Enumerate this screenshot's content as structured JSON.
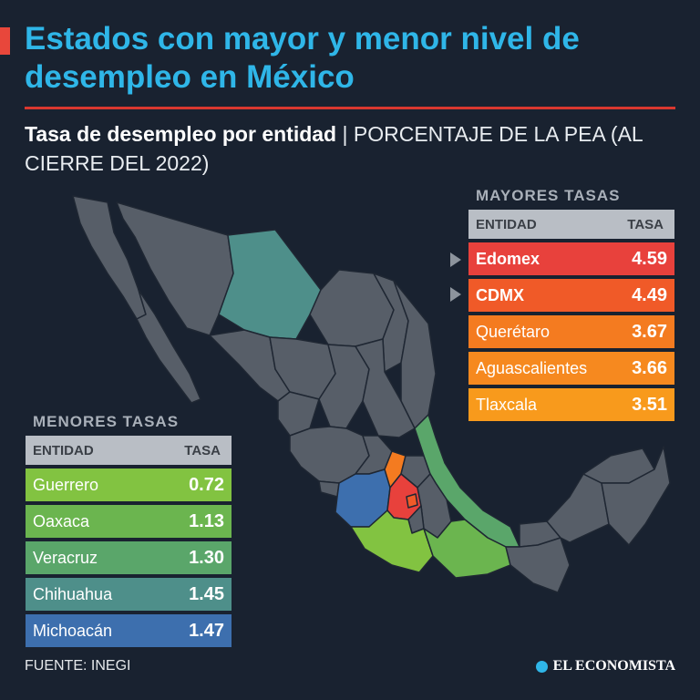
{
  "title": "Estados con mayor y menor nivel de desempleo en México",
  "subtitle_bold": "Tasa de desempleo por entidad",
  "subtitle_light": " | PORCENTAJE DE LA PEA (AL CIERRE DEL 2022)",
  "highest": {
    "title": "MAYORES TASAS",
    "col_entity": "ENTIDAD",
    "col_rate": "TASA",
    "rows": [
      {
        "name": "Edomex",
        "value": "4.59",
        "color": "#e8413c"
      },
      {
        "name": "CDMX",
        "value": "4.49",
        "color": "#f05a28"
      },
      {
        "name": "Querétaro",
        "value": "3.67",
        "color": "#f47b20"
      },
      {
        "name": "Aguascalientes",
        "value": "3.66",
        "color": "#f6891f"
      },
      {
        "name": "Tlaxcala",
        "value": "3.51",
        "color": "#f89a1c"
      }
    ]
  },
  "lowest": {
    "title": "MENORES TASAS",
    "col_entity": "ENTIDAD",
    "col_rate": "TASA",
    "rows": [
      {
        "name": "Guerrero",
        "value": "0.72",
        "color": "#82c341"
      },
      {
        "name": "Oaxaca",
        "value": "1.13",
        "color": "#6bb54f"
      },
      {
        "name": "Veracruz",
        "value": "1.30",
        "color": "#5aa66a"
      },
      {
        "name": "Chihuahua",
        "value": "1.45",
        "color": "#4e8f8a"
      },
      {
        "name": "Michoacán",
        "value": "1.47",
        "color": "#3d6fae"
      }
    ]
  },
  "map_colors": {
    "other_states": "#575e68",
    "borders": "#1f2733"
  },
  "source": "FUENTE: INEGI",
  "brand": "EL ECONOMISTA"
}
